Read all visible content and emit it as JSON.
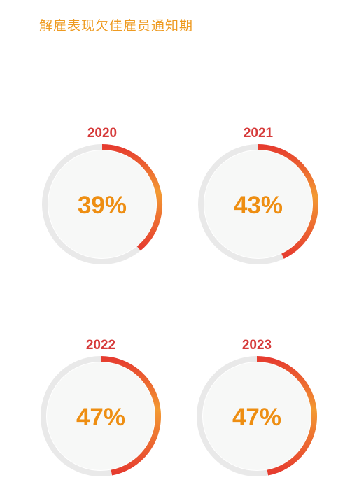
{
  "title": "解雇表现欠佳雇员通知期",
  "colors": {
    "title": "#ee9a20",
    "year": "#d63a3a",
    "percent": "#ee8e12",
    "track": "#e9e9e9",
    "inner": "#f7f8f7",
    "arc_start": "#e63c2f",
    "arc_end": "#f39a32"
  },
  "chart_data": {
    "type": "pie",
    "categories": [
      "2020",
      "2021",
      "2022",
      "2023"
    ],
    "values": [
      39,
      43,
      47,
      47
    ],
    "labels": [
      "39%",
      "43%",
      "47%",
      "47%"
    ],
    "unit": "%"
  }
}
